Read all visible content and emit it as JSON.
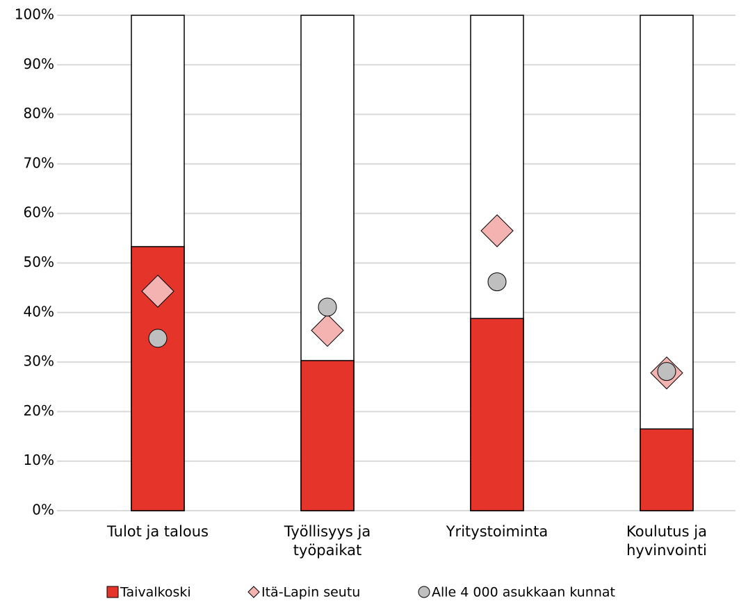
{
  "chart_data": {
    "type": "bar",
    "categories": [
      "Tulot ja talous",
      "Työllisyys ja työpaikat",
      "Yritystoiminta",
      "Koulutus ja hyvinvointi"
    ],
    "series": [
      {
        "name": "Taivalkoski",
        "color": "#e5352b",
        "marker": "bar",
        "values": [
          53.3,
          30.3,
          38.8,
          16.5
        ]
      },
      {
        "name": "Itä-Lapin seutu",
        "color": "#f4b3b1",
        "marker": "diamond",
        "values": [
          44.3,
          36.4,
          56.5,
          27.8
        ]
      },
      {
        "name": "Alle 4 000 asukkaan kunnat",
        "color": "#bfbfbf",
        "marker": "circle",
        "values": [
          34.8,
          41.1,
          46.2,
          28.1
        ]
      }
    ],
    "ylim": [
      0,
      100
    ],
    "yticks": [
      {
        "value": 0,
        "label": "0%"
      },
      {
        "value": 10,
        "label": "10%"
      },
      {
        "value": 20,
        "label": "20%"
      },
      {
        "value": 30,
        "label": "30%"
      },
      {
        "value": 40,
        "label": "40%"
      },
      {
        "value": 50,
        "label": "50%"
      },
      {
        "value": 60,
        "label": "60%"
      },
      {
        "value": 70,
        "label": "70%"
      },
      {
        "value": 80,
        "label": "80%"
      },
      {
        "value": 90,
        "label": "90%"
      },
      {
        "value": 100,
        "label": "100%"
      }
    ],
    "grid": true,
    "legend": "bottom"
  }
}
